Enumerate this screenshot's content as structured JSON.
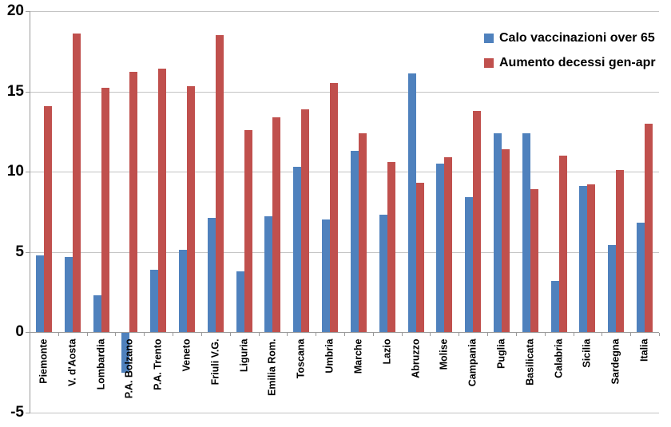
{
  "chart_data": {
    "type": "bar",
    "title": "",
    "xlabel": "",
    "ylabel": "",
    "categories": [
      "Piemonte",
      "V. d'Aosta",
      "Lombardia",
      "P.A. Bolzano",
      "P.A. Trento",
      "Veneto",
      "Friuli V.G.",
      "Liguria",
      "Emilia Rom.",
      "Toscana",
      "Umbria",
      "Marche",
      "Lazio",
      "Abruzzo",
      "Molise",
      "Campania",
      "Puglia",
      "Basilicata",
      "Calabria",
      "Sicilia",
      "Sardegna",
      "Italia"
    ],
    "series": [
      {
        "name": "Calo vaccinazioni over 65",
        "color": "#4F81BD",
        "values": [
          4.8,
          4.7,
          2.3,
          -2.5,
          3.9,
          5.1,
          7.1,
          3.8,
          7.2,
          10.3,
          7.0,
          11.3,
          7.3,
          16.1,
          10.5,
          8.4,
          12.4,
          12.4,
          3.2,
          9.1,
          5.4,
          6.8
        ]
      },
      {
        "name": "Aumento decessi gen-apr",
        "color": "#C0504D",
        "values": [
          14.1,
          18.6,
          15.2,
          16.2,
          16.4,
          15.3,
          18.5,
          12.6,
          13.4,
          13.9,
          15.5,
          12.4,
          10.6,
          9.3,
          10.9,
          13.8,
          11.4,
          8.9,
          11.0,
          9.2,
          10.1,
          13.0
        ]
      }
    ],
    "yticks": [
      20,
      15,
      10,
      5,
      0,
      -5
    ],
    "ylim": [
      -5,
      20
    ],
    "grid": true,
    "legend_position": "top-right"
  }
}
